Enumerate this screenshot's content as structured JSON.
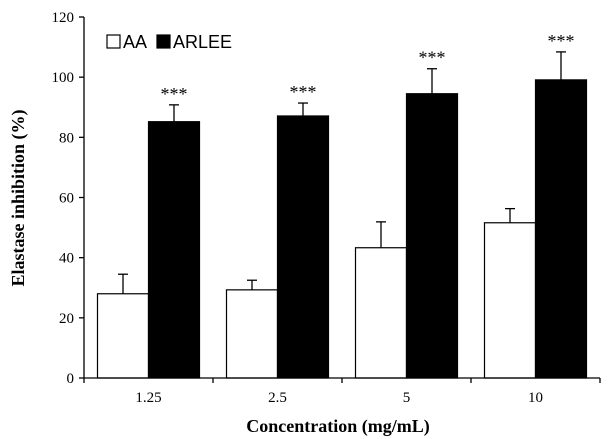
{
  "chart_data": {
    "type": "bar",
    "xlabel": "Concentration (mg/mL)",
    "ylabel": "Elastase inhibition (%)",
    "ylim": [
      0,
      120
    ],
    "yticks": [
      0,
      20,
      40,
      60,
      80,
      100,
      120
    ],
    "categories": [
      "1.25",
      "2.5",
      "5",
      "10"
    ],
    "legend_position": "top-left",
    "series": [
      {
        "name": "AA",
        "fill": "#ffffff",
        "values": [
          28,
          29.3,
          43.3,
          51.6
        ],
        "errors": [
          6.5,
          3.2,
          8.6,
          4.7
        ],
        "annotations": [
          "",
          "",
          "",
          ""
        ]
      },
      {
        "name": "ARLEE",
        "fill": "#000000",
        "values": [
          85.2,
          87.1,
          94.5,
          99.1
        ],
        "errors": [
          5.6,
          4.3,
          8.3,
          9.3
        ],
        "annotations": [
          "***",
          "***",
          "***",
          "***"
        ]
      }
    ]
  }
}
